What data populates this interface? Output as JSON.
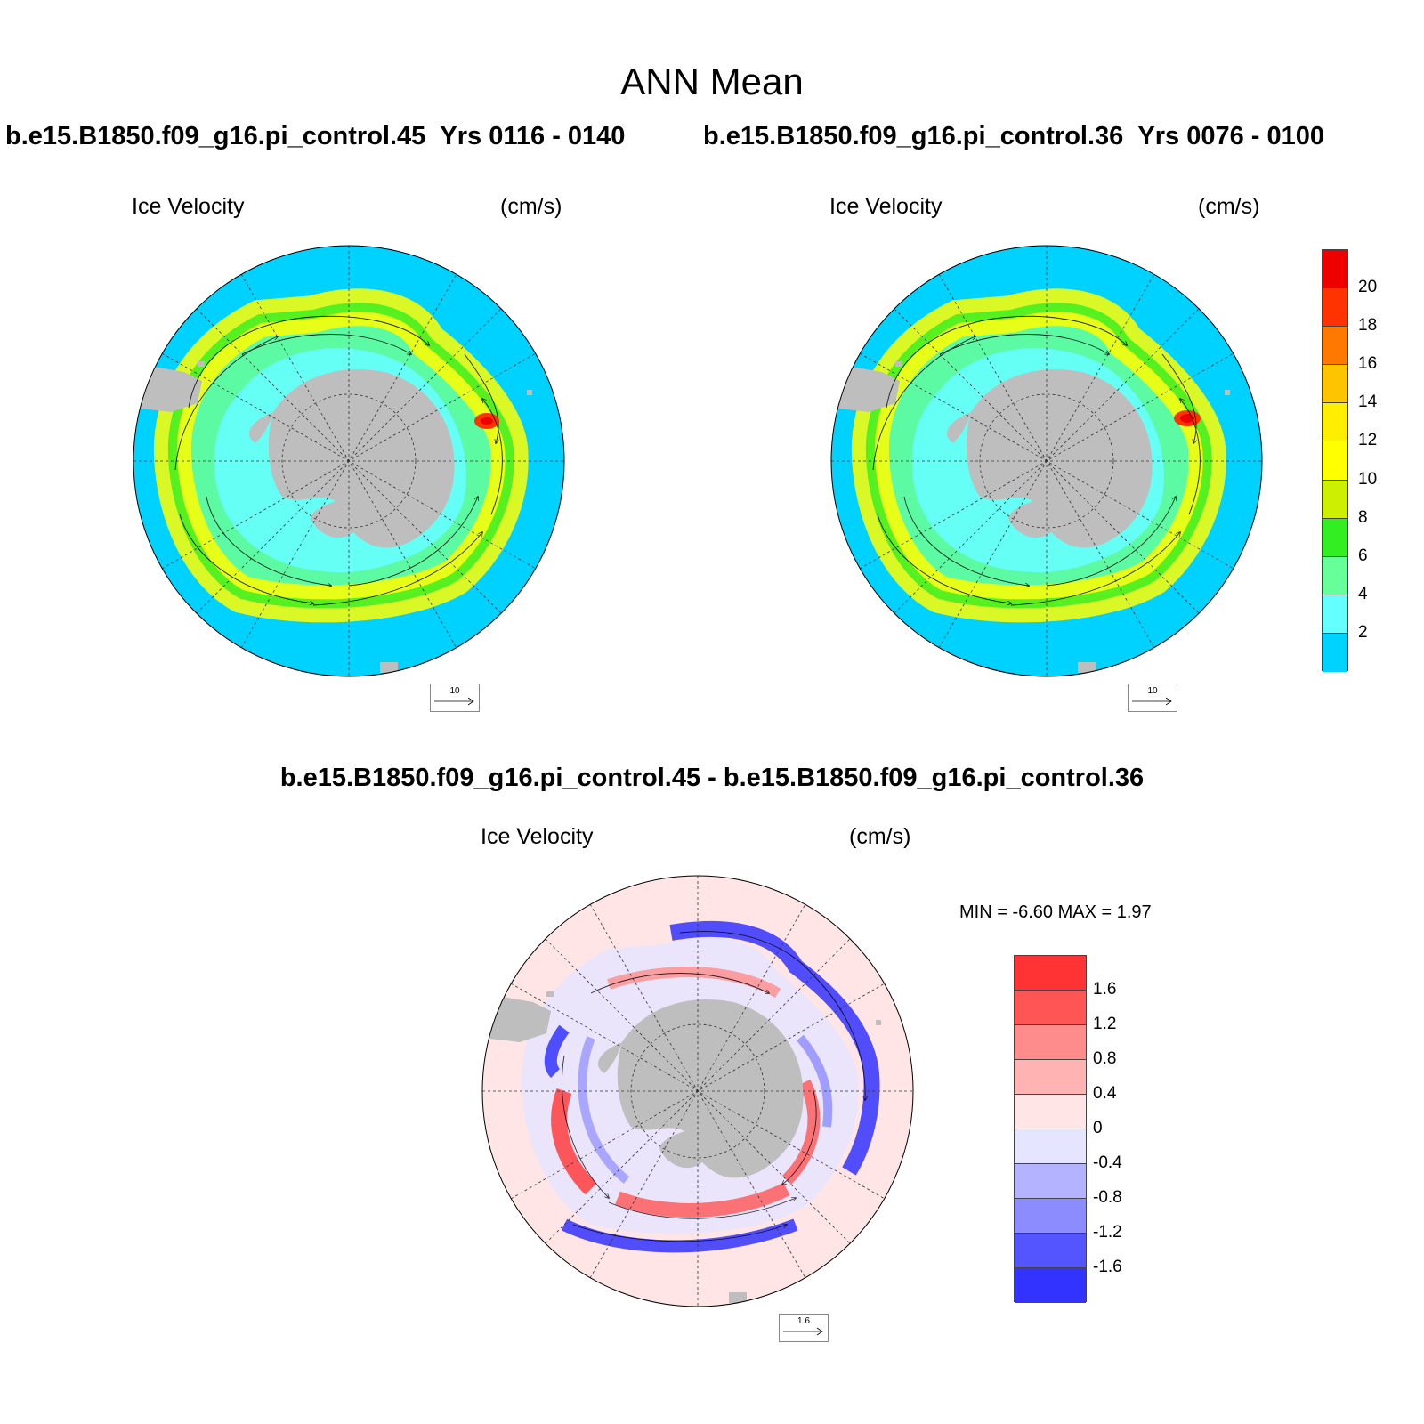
{
  "main_title": "ANN Mean",
  "panels": [
    {
      "run": "b.e15.B1850.f09_g16.pi_control.45",
      "years": "Yrs 0116 - 0140",
      "variable": "Ice Velocity",
      "units": "(cm/s)",
      "ref_vector": "10"
    },
    {
      "run": "b.e15.B1850.f09_g16.pi_control.36",
      "years": "Yrs 0076 - 0100",
      "variable": "Ice Velocity",
      "units": "(cm/s)",
      "ref_vector": "10"
    }
  ],
  "difference": {
    "title": "b.e15.B1850.f09_g16.pi_control.45 - b.e15.B1850.f09_g16.pi_control.36",
    "variable": "Ice Velocity",
    "units": "(cm/s)",
    "minmax": "MIN =  -6.60 MAX =   1.97",
    "ref_vector": "1.6"
  },
  "colors": {
    "ocean": "#00d2ff",
    "land": "#bebebe",
    "diff_background": "#ffe5e5"
  },
  "chart_data": [
    {
      "type": "heatmap",
      "title": "Ice Velocity",
      "subtitle": "b.e15.B1850.f09_g16.pi_control.45  Yrs 0116 - 0140",
      "units": "(cm/s)",
      "projection": "south-polar-stereographic",
      "colorbar_levels": [
        2,
        4,
        6,
        8,
        10,
        12,
        14,
        16,
        18,
        20
      ],
      "colorbar_colors": [
        "#00d2ff",
        "#66ffff",
        "#66ff99",
        "#33ee22",
        "#ccf000",
        "#ffff00",
        "#ffee00",
        "#ffc400",
        "#ff7800",
        "#ff3300",
        "#ee0000"
      ],
      "ice_band_typical_speed": 10,
      "max_speed_region_speed": 18
    },
    {
      "type": "heatmap",
      "title": "Ice Velocity",
      "subtitle": "b.e15.B1850.f09_g16.pi_control.36  Yrs 0076 - 0100",
      "units": "(cm/s)",
      "projection": "south-polar-stereographic",
      "colorbar_levels": [
        2,
        4,
        6,
        8,
        10,
        12,
        14,
        16,
        18,
        20
      ],
      "colorbar_colors": [
        "#00d2ff",
        "#66ffff",
        "#66ff99",
        "#33ee22",
        "#ccf000",
        "#ffff00",
        "#ffee00",
        "#ffc400",
        "#ff7800",
        "#ff3300",
        "#ee0000"
      ],
      "ice_band_typical_speed": 10,
      "max_speed_region_speed": 19
    },
    {
      "type": "heatmap",
      "title": "Ice Velocity",
      "subtitle": "b.e15.B1850.f09_g16.pi_control.45 - b.e15.B1850.f09_g16.pi_control.36",
      "units": "(cm/s)",
      "projection": "south-polar-stereographic",
      "colorbar_levels": [
        -1.6,
        -1.2,
        -0.8,
        -0.4,
        0,
        0.4,
        0.8,
        1.2,
        1.6
      ],
      "colorbar_tick_labels": [
        "-1.6",
        "-1.2",
        "-0.8",
        "-0.4",
        "0",
        "0.4",
        "0.8",
        "1.2",
        "1.6"
      ],
      "colorbar_colors": [
        "#3333ff",
        "#5555ff",
        "#8c8cff",
        "#b3b3ff",
        "#e5e5ff",
        "#ffe5e5",
        "#ffb3b3",
        "#ff8c8c",
        "#ff5555",
        "#ff3333"
      ],
      "min": -6.6,
      "max": 1.97
    }
  ]
}
